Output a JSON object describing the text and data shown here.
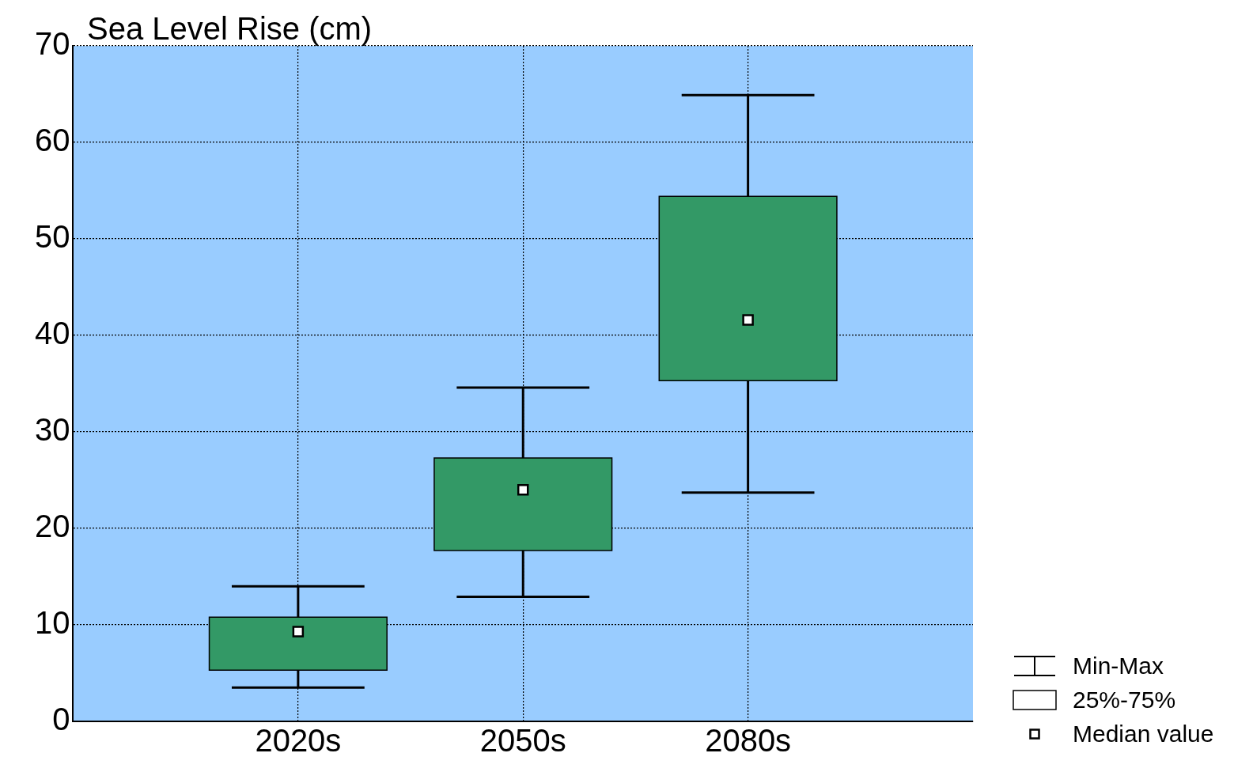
{
  "chart_data": {
    "type": "box",
    "ylabel": "Sea Level Rise (cm)",
    "categories": [
      "2020s",
      "2050s",
      "2080s"
    ],
    "boxes": [
      {
        "low": 3.5,
        "q1": 5.3,
        "median": 9.3,
        "q3": 10.8,
        "high": 14
      },
      {
        "low": 12.9,
        "q1": 17.7,
        "median": 24,
        "q3": 27.3,
        "high": 34.6
      },
      {
        "low": 23.7,
        "q1": 35.3,
        "median": 41.6,
        "q3": 54.4,
        "high": 64.9
      }
    ],
    "color": "#339966",
    "ylim": [
      0,
      70
    ],
    "yticks": [
      0,
      10,
      20,
      30,
      40,
      50,
      60,
      70
    ],
    "grid": true,
    "annotations": [
      "Min-Max",
      "25%-75%",
      "Median value"
    ]
  }
}
